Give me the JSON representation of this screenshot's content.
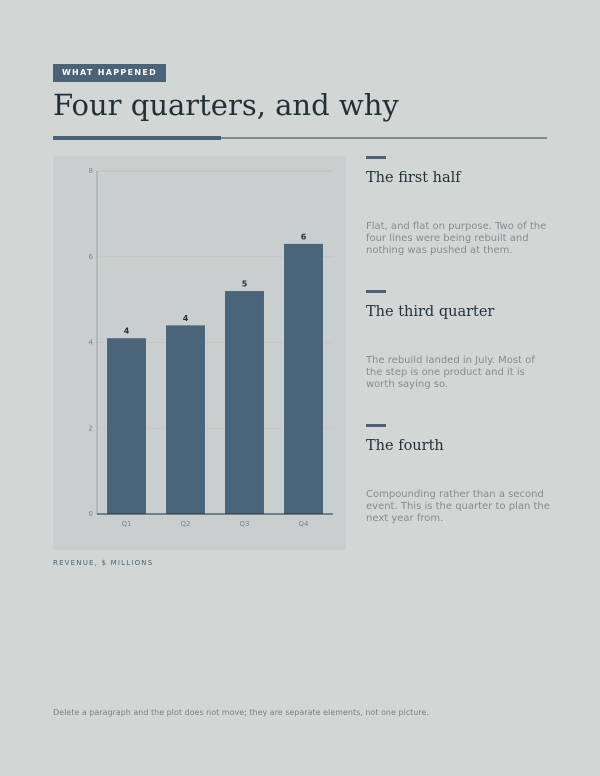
{
  "header": {
    "tag": "WHAT HAPPENED",
    "title": "Four quarters, and why"
  },
  "chart_data": {
    "type": "bar",
    "categories": [
      "Q1",
      "Q2",
      "Q3",
      "Q4"
    ],
    "values": [
      4.1,
      4.4,
      5.2,
      6.3
    ],
    "value_labels": [
      "4",
      "4",
      "5",
      "6"
    ],
    "color": "#4a657a",
    "ylim": [
      0,
      8
    ],
    "yticks": [
      0,
      2,
      4,
      6,
      8
    ],
    "grid": true,
    "caption": "REVENUE, $ MILLIONS"
  },
  "sections": [
    {
      "heading": "The first half",
      "body": "Flat, and flat on purpose. Two of the four lines were being rebuilt and nothing was pushed at them."
    },
    {
      "heading": "The third quarter",
      "body": "The rebuild landed in July. Most of the step is one product and it is worth saying so."
    },
    {
      "heading": "The fourth",
      "body": "Compounding rather than a second event. This is the quarter to plan the next year from."
    }
  ],
  "footer": "Delete a paragraph and the plot does not move; they are separate elements, not one picture."
}
